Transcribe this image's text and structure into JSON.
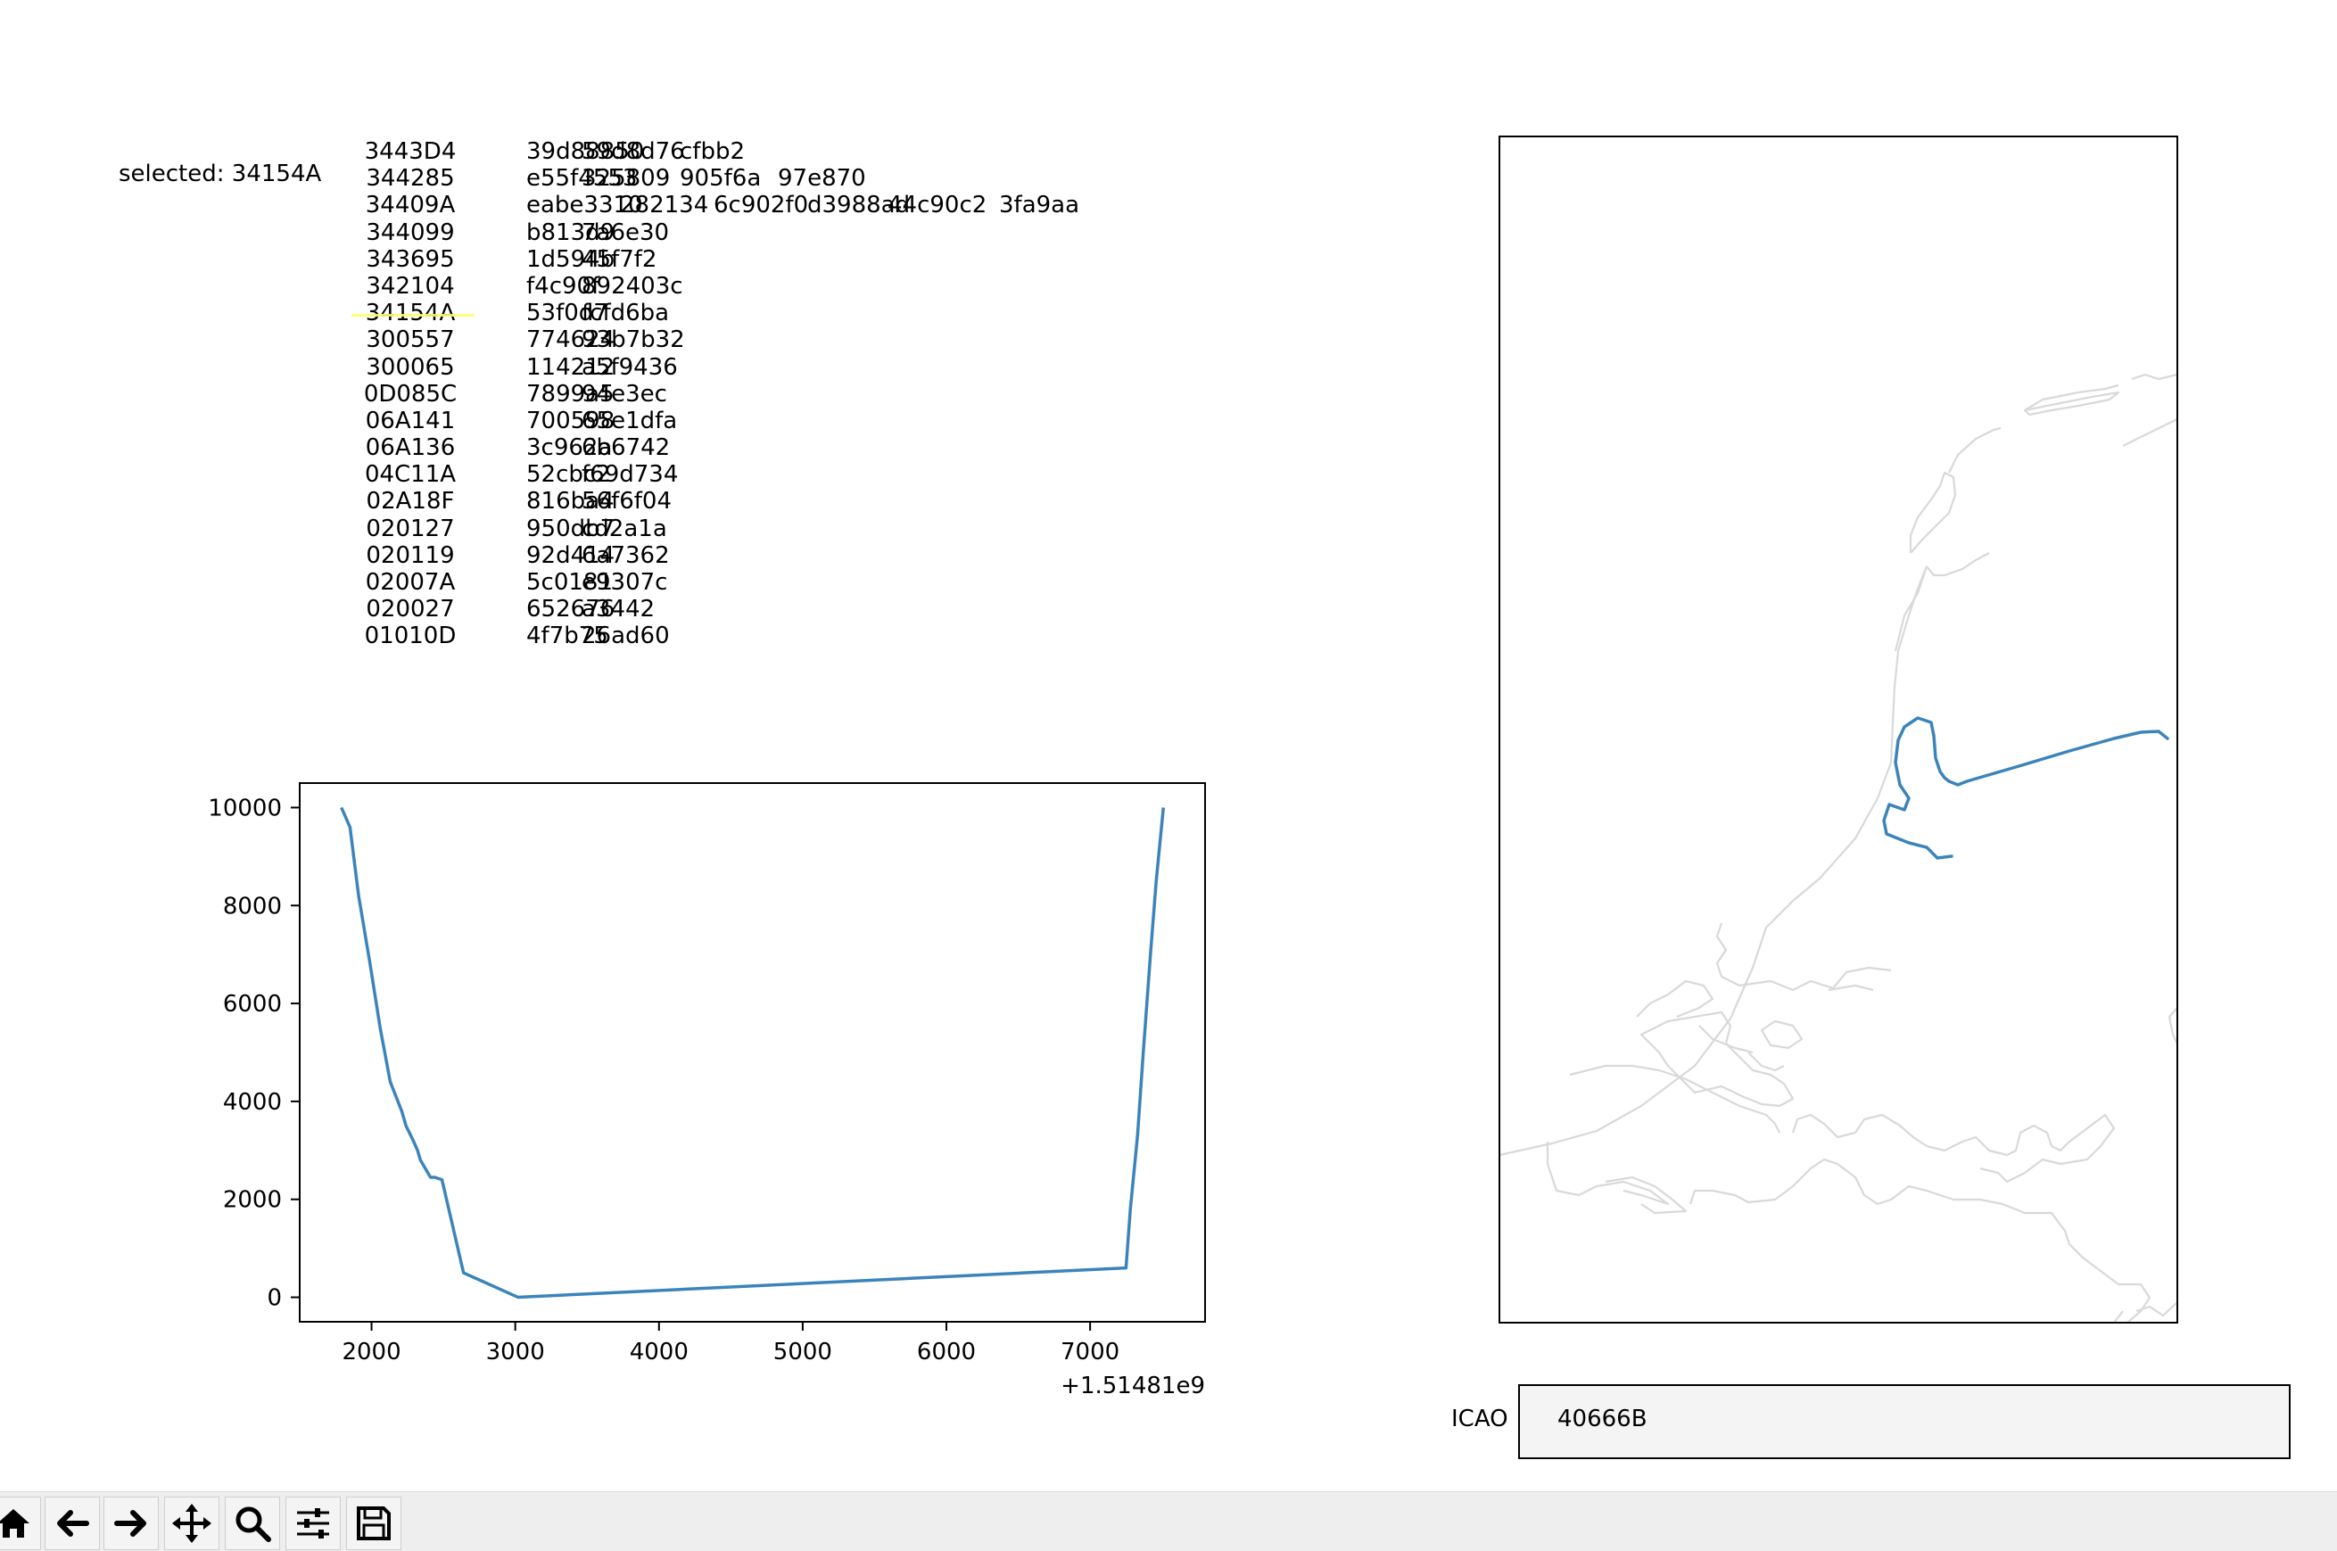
{
  "selected_text": "selected: 34154A",
  "aircraft_list": [
    {
      "icao": "3443D4",
      "hashes": [
        "39d88850",
        "59d8d76",
        "cfbb2"
      ]
    },
    {
      "icao": "344285",
      "hashes": [
        "e55f4553",
        "325809",
        "905f6a",
        "97e870"
      ]
    },
    {
      "icao": "34409A",
      "hashes": [
        "eabe3310",
        "282134",
        "6c902f0",
        "d3988ad",
        "44c90c2",
        "3fa9aa"
      ]
    },
    {
      "icao": "344099",
      "hashes": [
        "b813d9",
        "7a6e30"
      ]
    },
    {
      "icao": "343695",
      "hashes": [
        "1d594b",
        "45f7f2"
      ]
    },
    {
      "icao": "342104",
      "hashes": [
        "f4c90f",
        "892403c"
      ]
    },
    {
      "icao": "34154A",
      "hashes": [
        "53f0d7",
        "fcfd6ba"
      ]
    },
    {
      "icao": "300557",
      "hashes": [
        "774624",
        "93b7b32"
      ]
    },
    {
      "icao": "300065",
      "hashes": [
        "114212",
        "a5f9436"
      ]
    },
    {
      "icao": "0D085C",
      "hashes": [
        "7899a5",
        "94e3ec"
      ]
    },
    {
      "icao": "06A141",
      "hashes": [
        "700598",
        "65e1dfa"
      ]
    },
    {
      "icao": "06A136",
      "hashes": [
        "3c962a",
        "6b6742"
      ]
    },
    {
      "icao": "04C11A",
      "hashes": [
        "52cbc2",
        "f69d734"
      ]
    },
    {
      "icao": "02A18F",
      "hashes": [
        "816ba4",
        "56f6f04"
      ]
    },
    {
      "icao": "020127",
      "hashes": [
        "950db7",
        "cd2a1a"
      ]
    },
    {
      "icao": "020119",
      "hashes": [
        "92d414",
        "6a7362"
      ]
    },
    {
      "icao": "02007A",
      "hashes": [
        "5c0181",
        "e9307c"
      ]
    },
    {
      "icao": "020027",
      "hashes": [
        "652676",
        "a3442"
      ]
    },
    {
      "icao": "01010D",
      "hashes": [
        "4f7b75",
        "26ad60"
      ]
    }
  ],
  "altitude_chart": {
    "offset_label": "+1.51481e9",
    "chart_data": {
      "type": "line",
      "title": "",
      "xlabel": "",
      "ylabel": "",
      "xlim": [
        1500,
        7800
      ],
      "ylim": [
        -500,
        10500
      ],
      "xticks": [
        "2000",
        "3000",
        "4000",
        "5000",
        "6000",
        "7000"
      ],
      "yticks": [
        "0",
        "2000",
        "4000",
        "6000",
        "8000",
        "10000"
      ],
      "series_color": "#3b84bb",
      "x": [
        1790,
        1820,
        1850,
        1910,
        1990,
        2060,
        2130,
        2170,
        2210,
        2240,
        2290,
        2320,
        2340,
        2380,
        2410,
        2440,
        2490,
        2640,
        3020,
        7250,
        7280,
        7330,
        7370,
        7420,
        7460,
        7510
      ],
      "y": [
        10000,
        9800,
        9600,
        8200,
        6800,
        5500,
        4400,
        4100,
        3800,
        3500,
        3200,
        3000,
        2800,
        2600,
        2450,
        2450,
        2400,
        500,
        0,
        600,
        1800,
        3300,
        5000,
        7000,
        8500,
        10000
      ]
    }
  },
  "map": {
    "track_color": "#3b84bb",
    "coast_color": "#d9d9d9"
  },
  "icao_field": {
    "label": "ICAO",
    "value": "40666B"
  },
  "toolbar": [
    {
      "name": "home-icon"
    },
    {
      "name": "back-icon"
    },
    {
      "name": "forward-icon"
    },
    {
      "name": "pan-icon"
    },
    {
      "name": "zoom-icon"
    },
    {
      "name": "configure-icon"
    },
    {
      "name": "save-icon"
    }
  ]
}
